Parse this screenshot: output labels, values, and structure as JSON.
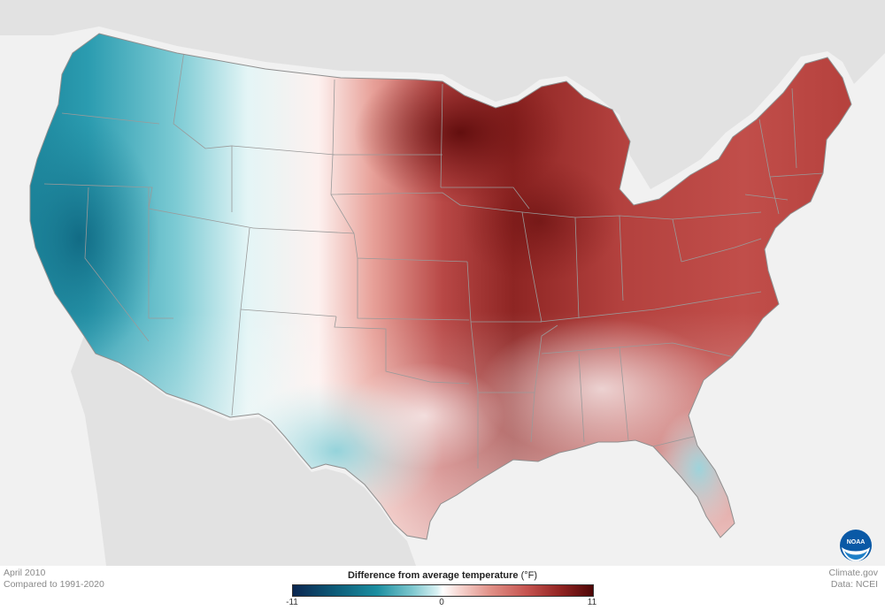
{
  "meta": {
    "period": "April 2010",
    "baseline": "Compared to 1991-2020",
    "site": "Climate.gov",
    "source": "Data: NCEI"
  },
  "legend": {
    "title": "Difference from average temperature",
    "unit": "(°F)",
    "min_label": "-11",
    "mid_label": "0",
    "max_label": "11",
    "min_value": -11,
    "max_value": 11
  },
  "colors": {
    "land_bg": "#e4e4e4",
    "water_bg": "#f2f2f2",
    "cool_extreme": "#0b2650",
    "neutral": "#ffffff",
    "warm_extreme": "#4e0707"
  },
  "logo": {
    "name": "NOAA"
  }
}
